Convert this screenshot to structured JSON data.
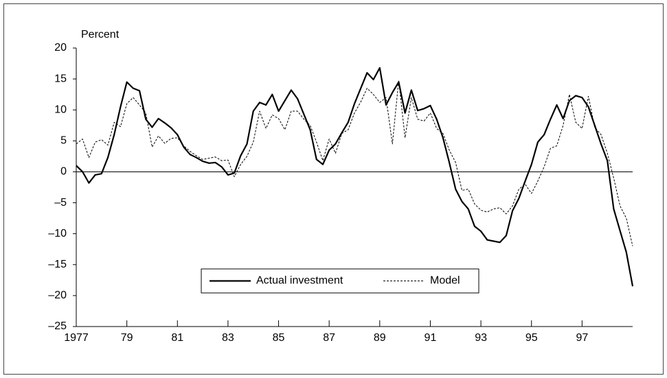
{
  "chart_data": {
    "type": "line",
    "y_axis_label": "Percent",
    "x": [
      1977,
      1977.25,
      1977.5,
      1977.75,
      1978,
      1978.25,
      1978.5,
      1978.75,
      1979,
      1979.25,
      1979.5,
      1979.75,
      1980,
      1980.25,
      1980.5,
      1980.75,
      1981,
      1981.25,
      1981.5,
      1981.75,
      1982,
      1982.25,
      1982.5,
      1982.75,
      1983,
      1983.25,
      1983.5,
      1983.75,
      1984,
      1984.25,
      1984.5,
      1984.75,
      1985,
      1985.25,
      1985.5,
      1985.75,
      1986,
      1986.25,
      1986.5,
      1986.75,
      1987,
      1987.25,
      1987.5,
      1987.75,
      1988,
      1988.25,
      1988.5,
      1988.75,
      1989,
      1989.25,
      1989.5,
      1989.75,
      1990,
      1990.25,
      1990.5,
      1990.75,
      1991,
      1991.25,
      1991.5,
      1991.75,
      1992,
      1992.25,
      1992.5,
      1992.75,
      1993,
      1993.25,
      1993.5,
      1993.75,
      1994,
      1994.25,
      1994.5,
      1994.75,
      1995,
      1995.25,
      1995.5,
      1995.75,
      1996,
      1996.25,
      1996.5,
      1996.75,
      1997,
      1997.25,
      1997.5,
      1997.75,
      1998,
      1998.25,
      1998.5,
      1998.75,
      1999
    ],
    "series": [
      {
        "name": "Actual investment",
        "color": "#000000",
        "dash": "solid",
        "values": [
          1,
          0,
          -1.8,
          -0.5,
          -0.3,
          2.3,
          6,
          10.5,
          14.5,
          13.5,
          13.1,
          8.5,
          7.2,
          8.6,
          7.9,
          7.1,
          6,
          4,
          2.8,
          2.3,
          1.7,
          1.4,
          1.5,
          0.8,
          -0.5,
          -0.2,
          2.6,
          4.5,
          9.8,
          11.2,
          10.8,
          12.5,
          9.8,
          11.5,
          13.2,
          11.8,
          9.3,
          6.8,
          2,
          1.2,
          3.5,
          4.5,
          6.3,
          8,
          11,
          13.5,
          16,
          14.9,
          16.8,
          10.8,
          12.8,
          14.5,
          9.5,
          13.2,
          9.9,
          10.2,
          10.7,
          8.5,
          5.5,
          1.5,
          -2.8,
          -4.8,
          -6,
          -8.8,
          -9.6,
          -11,
          -11.2,
          -11.4,
          -10.3,
          -6.3,
          -4.3,
          -1.5,
          1.2,
          4.8,
          6,
          8.5,
          10.8,
          8.6,
          11.5,
          12.3,
          12,
          10.5,
          7.5,
          4.5,
          1.8,
          -6,
          -9.5,
          -13,
          -18.5
        ]
      },
      {
        "name": "Model",
        "color": "#000000",
        "dash": "dashed",
        "values": [
          4.5,
          5.3,
          2.3,
          4.8,
          5.2,
          4.3,
          8,
          7.3,
          11,
          12,
          10.8,
          9.5,
          4,
          5.8,
          4.6,
          5.4,
          5.5,
          4.2,
          3.3,
          2.6,
          2,
          2.2,
          2.4,
          1.8,
          1.9,
          -0.8,
          1.2,
          2.5,
          4.8,
          9.8,
          7,
          9.2,
          8.6,
          6.8,
          9.8,
          9.8,
          8.5,
          7.5,
          4.8,
          1.8,
          5.3,
          3,
          6.2,
          6.8,
          9.5,
          11.3,
          13.5,
          12.5,
          11.2,
          12,
          4.5,
          14.8,
          5.5,
          12,
          8.5,
          8.2,
          9.5,
          7,
          6.2,
          3.5,
          1.5,
          -3,
          -2.8,
          -5.2,
          -6.2,
          -6.5,
          -6,
          -5.8,
          -6.8,
          -5.5,
          -2.8,
          -2,
          -3.5,
          -1.5,
          0.8,
          3.8,
          4.2,
          7.5,
          12.5,
          8,
          7,
          12.2,
          7.2,
          6,
          3,
          -1,
          -5.5,
          -7.5,
          -12
        ]
      }
    ],
    "xlim": [
      1977,
      1999
    ],
    "xticks": [
      1977,
      {
        "value": 1979,
        "label": "79"
      },
      {
        "value": 1981,
        "label": "81"
      },
      {
        "value": 1983,
        "label": "83"
      },
      {
        "value": 1985,
        "label": "85"
      },
      {
        "value": 1987,
        "label": "87"
      },
      {
        "value": 1989,
        "label": "89"
      },
      {
        "value": 1991,
        "label": "91"
      },
      {
        "value": 1993,
        "label": "93"
      },
      {
        "value": 1995,
        "label": "95"
      },
      {
        "value": 1997,
        "label": "97"
      }
    ],
    "ylim": [
      -25,
      20
    ],
    "yticks": [
      {
        "value": -25,
        "label": "–25"
      },
      {
        "value": -20,
        "label": "–20"
      },
      {
        "value": -15,
        "label": "–15"
      },
      {
        "value": -10,
        "label": "–10"
      },
      {
        "value": -5,
        "label": "–5"
      },
      0,
      5,
      10,
      15,
      20
    ],
    "grid": false,
    "legend_position": "lower center"
  }
}
